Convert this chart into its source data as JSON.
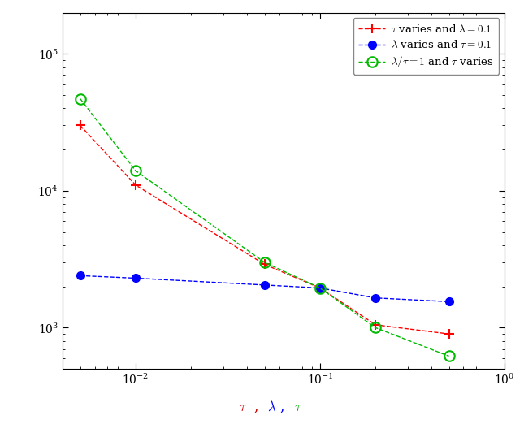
{
  "red_x": [
    0.005,
    0.01,
    0.05,
    0.1,
    0.2,
    0.5
  ],
  "red_y": [
    30000,
    11000,
    2900,
    1950,
    1050,
    900
  ],
  "blue_x": [
    0.005,
    0.01,
    0.05,
    0.1,
    0.2,
    0.5
  ],
  "blue_y": [
    2400,
    2300,
    2050,
    1950,
    1650,
    1550
  ],
  "green_x": [
    0.005,
    0.01,
    0.05,
    0.1,
    0.2,
    0.5
  ],
  "green_y": [
    47000,
    14000,
    3000,
    1950,
    1000,
    620
  ],
  "red_label": "$\\tau$ varies and $\\lambda = 0.1$",
  "blue_label": "$\\lambda$ varies and $\\tau = 0.1$",
  "green_label": "$\\lambda/\\tau = 1$ and $\\tau$ varies",
  "xlabel_tau1": "$\\tau$",
  "xlabel_comma1": ", ",
  "xlabel_lambda": "$\\lambda$",
  "xlabel_comma2": ", ",
  "xlabel_tau2": "$\\tau$",
  "xlim": [
    0.004,
    1.0
  ],
  "ylim": [
    500,
    200000
  ],
  "red_color": "#ff0000",
  "blue_color": "#0000ff",
  "green_color": "#00bb00",
  "bg_color": "#ffffff",
  "figwidth": 6.4,
  "figheight": 5.22,
  "dpi": 100
}
